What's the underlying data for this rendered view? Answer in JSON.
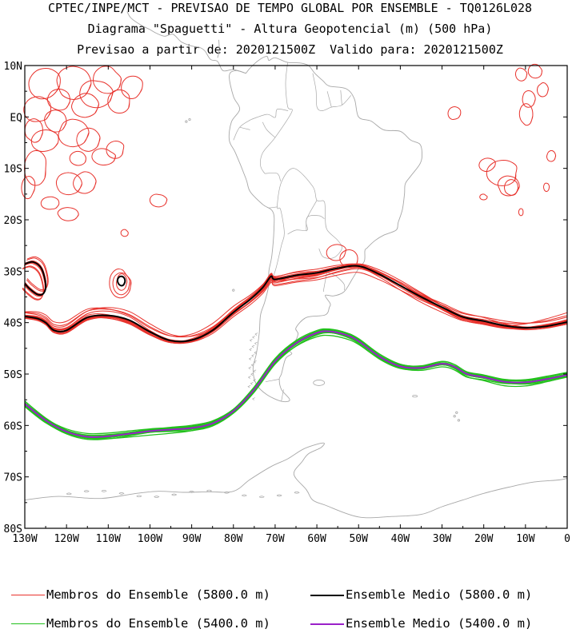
{
  "titles": {
    "line1": "CPTEC/INPE/MCT - PREVISAO DE TEMPO GLOBAL POR ENSEMBLE - TQ0126L028",
    "line2": "Diagrama \"Spaguetti\" - Altura Geopotencial (m) (500 hPa)",
    "line3": "Previsao a partir de: 2020121500Z  Valido para: 2020121500Z"
  },
  "axes": {
    "lat_labels": [
      "10N",
      "EQ",
      "10S",
      "20S",
      "30S",
      "40S",
      "50S",
      "60S",
      "70S",
      "80S"
    ],
    "lat_values": [
      10,
      0,
      -10,
      -20,
      -30,
      -40,
      -50,
      -60,
      -70,
      -80
    ],
    "lon_labels": [
      "130W",
      "120W",
      "110W",
      "100W",
      "90W",
      "80W",
      "70W",
      "60W",
      "50W",
      "40W",
      "30W",
      "20W",
      "10W",
      "0"
    ],
    "lon_values": [
      -130,
      -120,
      -110,
      -100,
      -90,
      -80,
      -70,
      -60,
      -50,
      -40,
      -30,
      -20,
      -10,
      0
    ],
    "lon_range": [
      -130,
      0
    ],
    "lat_range": [
      -80,
      10
    ]
  },
  "colors": {
    "members_5800": "#e8322c",
    "mean_5800": "#000000",
    "members_5400": "#22c01c",
    "mean_5400": "#9a20c8",
    "coast": "#a8a8a8"
  },
  "chart_data": {
    "type": "line",
    "series": [
      {
        "name": "Ensemble Medio (5800.0 m)",
        "lon": [
          -130,
          -127,
          -125,
          -123,
          -120,
          -115,
          -110,
          -105,
          -100,
          -95,
          -90,
          -85,
          -80,
          -76,
          -73,
          -71,
          -70,
          -65,
          -60,
          -55,
          -50,
          -45,
          -40,
          -35,
          -30,
          -25,
          -20,
          -15,
          -10,
          -5,
          0
        ],
        "lat": [
          -38.8,
          -39.2,
          -40.0,
          -41.5,
          -41.5,
          -39.0,
          -38.6,
          -39.5,
          -41.8,
          -43.5,
          -43.4,
          -41.5,
          -38.0,
          -35.5,
          -33.2,
          -31.0,
          -31.6,
          -30.8,
          -30.3,
          -29.4,
          -29.0,
          -30.6,
          -32.8,
          -35.0,
          -37.0,
          -38.9,
          -39.7,
          -40.6,
          -41.0,
          -40.7,
          -39.9
        ]
      },
      {
        "name": "Ensemble Medio (5400.0 m)",
        "lon": [
          -130,
          -125,
          -120,
          -115,
          -110,
          -105,
          -100,
          -95,
          -90,
          -85,
          -80,
          -75,
          -70,
          -65,
          -60,
          -57,
          -53,
          -50,
          -45,
          -40,
          -35,
          -30,
          -27,
          -24,
          -20,
          -15,
          -10,
          -5,
          0
        ],
        "lat": [
          -55.8,
          -59.0,
          -61.2,
          -62.2,
          -62.1,
          -61.6,
          -61.1,
          -60.8,
          -60.5,
          -59.6,
          -57.2,
          -53.0,
          -47.5,
          -44.0,
          -42.0,
          -41.7,
          -42.4,
          -43.6,
          -46.6,
          -48.5,
          -48.8,
          -48.0,
          -48.6,
          -50.0,
          -50.6,
          -51.5,
          -51.6,
          -51.0,
          -50.2
        ]
      },
      {
        "name": "Ensemble Medio (5800.0 m) cut-off",
        "lon": [
          -130,
          -128,
          -126,
          -125,
          -125.5,
          -127,
          -129,
          -130
        ],
        "lat": [
          -28.6,
          -28.2,
          -29.5,
          -32.5,
          -34.3,
          -34.5,
          -33.3,
          -32.4
        ]
      }
    ],
    "members_5800_count": 15,
    "members_5400_count": 15
  },
  "legend": {
    "items": [
      {
        "label": "Membros do Ensemble (5800.0 m)",
        "color_key": "members_5800"
      },
      {
        "label": "Ensemble Medio (5800.0 m)",
        "color_key": "mean_5800"
      },
      {
        "label": "Membros do Ensemble (5400.0 m)",
        "color_key": "members_5400"
      },
      {
        "label": "Ensemble Medio (5400.0 m)",
        "color_key": "mean_5400"
      }
    ]
  }
}
